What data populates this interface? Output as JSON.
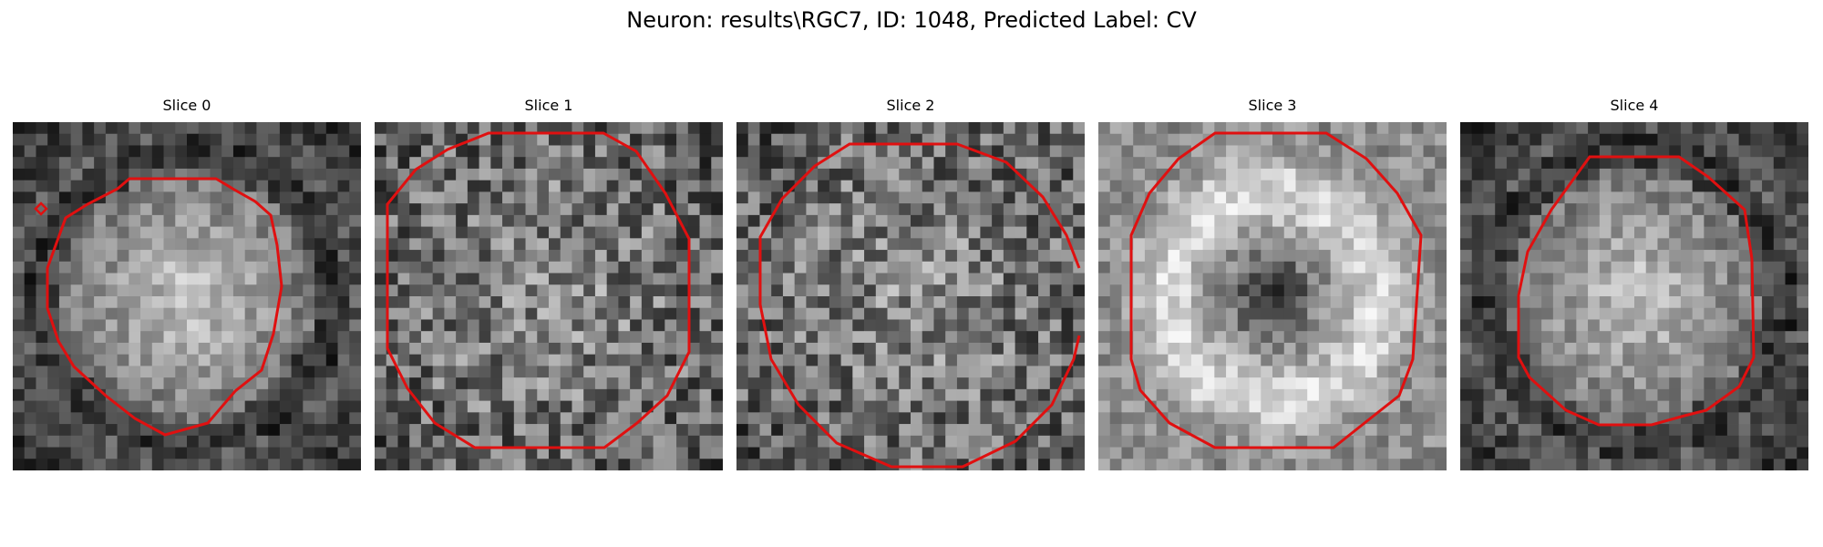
{
  "figure": {
    "title": "Neuron: results\\RGC7, ID: 1048, Predicted Label: CV"
  },
  "contour_color": "#e01010",
  "grid_cells": 30,
  "slices": [
    {
      "label": "Slice 0",
      "pattern": "blob",
      "seed": 11
    },
    {
      "label": "Slice 1",
      "pattern": "noise",
      "seed": 23
    },
    {
      "label": "Slice 2",
      "pattern": "noise",
      "seed": 37
    },
    {
      "label": "Slice 3",
      "pattern": "ring",
      "seed": 41
    },
    {
      "label": "Slice 4",
      "pattern": "blob",
      "seed": 53
    }
  ]
}
